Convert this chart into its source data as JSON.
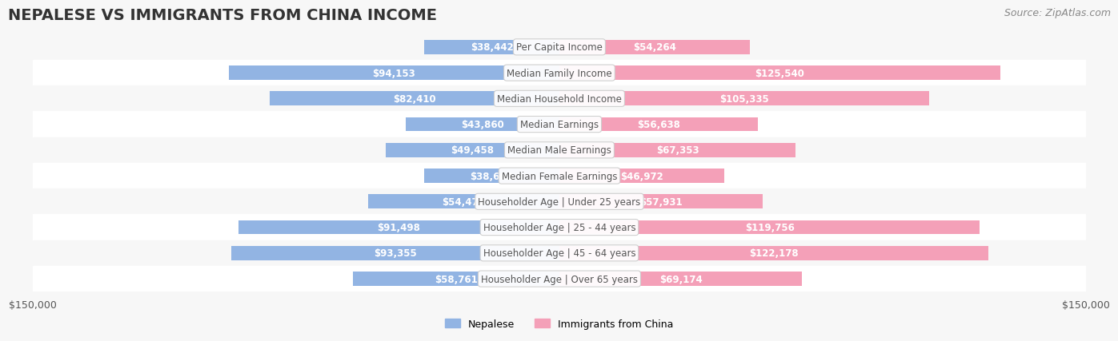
{
  "title": "NEPALESE VS IMMIGRANTS FROM CHINA INCOME",
  "source": "Source: ZipAtlas.com",
  "categories": [
    "Per Capita Income",
    "Median Family Income",
    "Median Household Income",
    "Median Earnings",
    "Median Male Earnings",
    "Median Female Earnings",
    "Householder Age | Under 25 years",
    "Householder Age | 25 - 44 years",
    "Householder Age | 45 - 64 years",
    "Householder Age | Over 65 years"
  ],
  "nepalese_values": [
    38442,
    94153,
    82410,
    43860,
    49458,
    38603,
    54472,
    91498,
    93355,
    58761
  ],
  "china_values": [
    54264,
    125540,
    105335,
    56638,
    67353,
    46972,
    57931,
    119756,
    122178,
    69174
  ],
  "nepalese_color": "#92b4e3",
  "china_color": "#f4a0b8",
  "nepalese_label_color_inside": "#ffffff",
  "china_label_color_inside": "#ffffff",
  "nepalese_label_color_outside": "#555555",
  "china_label_color_outside": "#555555",
  "bar_bg_color": "#f0f0f0",
  "row_bg_color": "#f7f7f7",
  "row_alt_color": "#ffffff",
  "category_box_color": "#ffffff",
  "category_text_color": "#555555",
  "max_value": 150000,
  "x_tick_labels": [
    "-$150,000",
    "$150,000"
  ],
  "legend_nepalese": "Nepalese",
  "legend_china": "Immigrants from China",
  "title_fontsize": 14,
  "label_fontsize": 8.5,
  "category_fontsize": 8.5,
  "source_fontsize": 9
}
